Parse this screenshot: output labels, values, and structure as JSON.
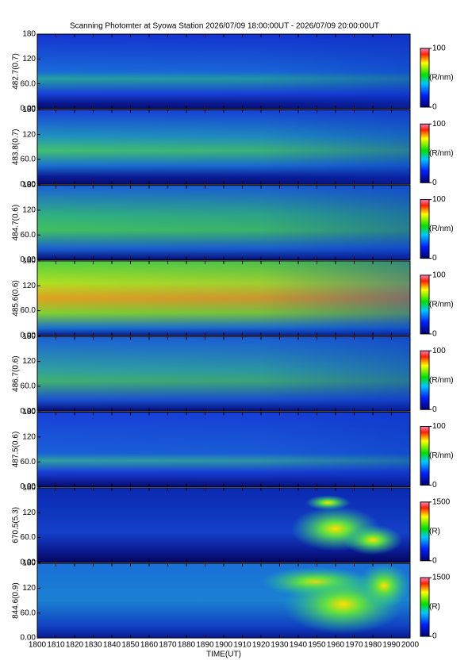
{
  "title": "Scanning Photomter at Syowa Station 2026/07/09 18:00:00UT - 2026/07/09 20:00:00UT",
  "chart_data": [
    {
      "type": "heatmap",
      "ylabel": "482.7(0.7)",
      "ylim": [
        0,
        180
      ],
      "yticks": [
        {
          "value": 0,
          "label": "0.00"
        },
        {
          "value": 60,
          "label": "60.0"
        },
        120,
        180
      ],
      "xlim": [
        1800,
        2000
      ],
      "xticks": [
        1800,
        1810,
        1820,
        1830,
        1840,
        1850,
        1860,
        1870,
        1880,
        1890,
        1900,
        1910,
        1920,
        1930,
        1940,
        1950,
        1960,
        1970,
        1980,
        1990,
        2000
      ],
      "clim": [
        0,
        100
      ],
      "cticks": [
        0,
        100
      ],
      "colorbar_label": "(R/nm)"
    },
    {
      "type": "heatmap",
      "ylabel": "483.8(0.7)",
      "ylim": [
        0,
        180
      ],
      "yticks": [
        {
          "value": 0,
          "label": "0.00"
        },
        {
          "value": 60,
          "label": "60.0"
        },
        120,
        180
      ],
      "xlim": [
        1800,
        2000
      ],
      "xticks": [
        1800,
        1810,
        1820,
        1830,
        1840,
        1850,
        1860,
        1870,
        1880,
        1890,
        1900,
        1910,
        1920,
        1930,
        1940,
        1950,
        1960,
        1970,
        1980,
        1990,
        2000
      ],
      "clim": [
        0,
        100
      ],
      "cticks": [
        0,
        100
      ],
      "colorbar_label": "(R/nm)"
    },
    {
      "type": "heatmap",
      "ylabel": "484.7(0.6)",
      "ylim": [
        0,
        180
      ],
      "yticks": [
        {
          "value": 0,
          "label": "0.00"
        },
        {
          "value": 60,
          "label": "60.0"
        },
        120,
        180
      ],
      "xlim": [
        1800,
        2000
      ],
      "xticks": [
        1800,
        1810,
        1820,
        1830,
        1840,
        1850,
        1860,
        1870,
        1880,
        1890,
        1900,
        1910,
        1920,
        1930,
        1940,
        1950,
        1960,
        1970,
        1980,
        1990,
        2000
      ],
      "clim": [
        0,
        100
      ],
      "cticks": [
        0,
        100
      ],
      "colorbar_label": "(R/nm)"
    },
    {
      "type": "heatmap",
      "ylabel": "485.6(0.6)",
      "ylim": [
        0,
        180
      ],
      "yticks": [
        {
          "value": 0,
          "label": "0.00"
        },
        {
          "value": 60,
          "label": "60.0"
        },
        120,
        180
      ],
      "xlim": [
        1800,
        2000
      ],
      "xticks": [
        1800,
        1810,
        1820,
        1830,
        1840,
        1850,
        1860,
        1870,
        1880,
        1890,
        1900,
        1910,
        1920,
        1930,
        1940,
        1950,
        1960,
        1970,
        1980,
        1990,
        2000
      ],
      "clim": [
        0,
        100
      ],
      "cticks": [
        0,
        100
      ],
      "colorbar_label": "(R/nm)"
    },
    {
      "type": "heatmap",
      "ylabel": "486.7(0.6)",
      "ylim": [
        0,
        180
      ],
      "yticks": [
        {
          "value": 0,
          "label": "0.00"
        },
        {
          "value": 60,
          "label": "60.0"
        },
        120,
        180
      ],
      "xlim": [
        1800,
        2000
      ],
      "xticks": [
        1800,
        1810,
        1820,
        1830,
        1840,
        1850,
        1860,
        1870,
        1880,
        1890,
        1900,
        1910,
        1920,
        1930,
        1940,
        1950,
        1960,
        1970,
        1980,
        1990,
        2000
      ],
      "clim": [
        0,
        100
      ],
      "cticks": [
        0,
        100
      ],
      "colorbar_label": "(R/nm)"
    },
    {
      "type": "heatmap",
      "ylabel": "487.5(0.6)",
      "ylim": [
        0,
        180
      ],
      "yticks": [
        {
          "value": 0,
          "label": "0.00"
        },
        {
          "value": 60,
          "label": "60.0"
        },
        120,
        180
      ],
      "xlim": [
        1800,
        2000
      ],
      "xticks": [
        1800,
        1810,
        1820,
        1830,
        1840,
        1850,
        1860,
        1870,
        1880,
        1890,
        1900,
        1910,
        1920,
        1930,
        1940,
        1950,
        1960,
        1970,
        1980,
        1990,
        2000
      ],
      "clim": [
        0,
        100
      ],
      "cticks": [
        0,
        100
      ],
      "colorbar_label": "(R/nm)"
    },
    {
      "type": "heatmap",
      "ylabel": "670.5(5.3)",
      "ylim": [
        0,
        180
      ],
      "yticks": [
        {
          "value": 0,
          "label": "0.00"
        },
        {
          "value": 60,
          "label": "60.0"
        },
        120,
        180
      ],
      "xlim": [
        1800,
        2000
      ],
      "xticks": [
        1800,
        1810,
        1820,
        1830,
        1840,
        1850,
        1860,
        1870,
        1880,
        1890,
        1900,
        1910,
        1920,
        1930,
        1940,
        1950,
        1960,
        1970,
        1980,
        1990,
        2000
      ],
      "clim": [
        0,
        1500
      ],
      "cticks": [
        0,
        1500
      ],
      "colorbar_label": "(R)"
    },
    {
      "type": "heatmap",
      "ylabel": "844.6(0.9)",
      "ylim": [
        0,
        180
      ],
      "yticks": [
        {
          "value": 0,
          "label": "0.00"
        },
        {
          "value": 60,
          "label": "60.0"
        },
        120,
        180
      ],
      "xlim": [
        1800,
        2000
      ],
      "xticks": [
        1800,
        1810,
        1820,
        1830,
        1840,
        1850,
        1860,
        1870,
        1880,
        1890,
        1900,
        1910,
        1920,
        1930,
        1940,
        1950,
        1960,
        1970,
        1980,
        1990,
        2000
      ],
      "clim": [
        0,
        1500
      ],
      "cticks": [
        0,
        1500
      ],
      "colorbar_label": "(R)",
      "xlabel": "TIME(UT)"
    }
  ]
}
